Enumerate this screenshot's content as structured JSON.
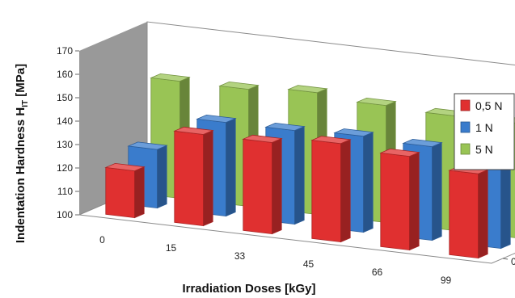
{
  "chart_data": {
    "type": "bar",
    "variant": "3d-column",
    "categories": [
      "0",
      "15",
      "33",
      "45",
      "66",
      "99"
    ],
    "depth_labels": [
      "0,5 N",
      "1 N",
      "5 N"
    ],
    "series": [
      {
        "name": "0,5 N",
        "color": "#e03030",
        "values": [
          120,
          139,
          139,
          142,
          140,
          136
        ]
      },
      {
        "name": "1 N",
        "color": "#3a7ccc",
        "values": [
          125,
          140,
          140,
          141,
          140,
          138
        ]
      },
      {
        "name": "5 N",
        "color": "#99c455",
        "values": [
          150,
          150,
          152,
          150,
          149,
          149
        ]
      }
    ],
    "xlabel": "Irradiation Doses [kGy]",
    "ylabel_main": "Indentation Hardness H",
    "ylabel_sub": "IT",
    "ylabel_unit": " [MPa]",
    "ylim": [
      100,
      170
    ],
    "yticks": [
      "100",
      "110",
      "120",
      "130",
      "140",
      "150",
      "160",
      "170"
    ],
    "legend_position": "right",
    "grid": false
  }
}
